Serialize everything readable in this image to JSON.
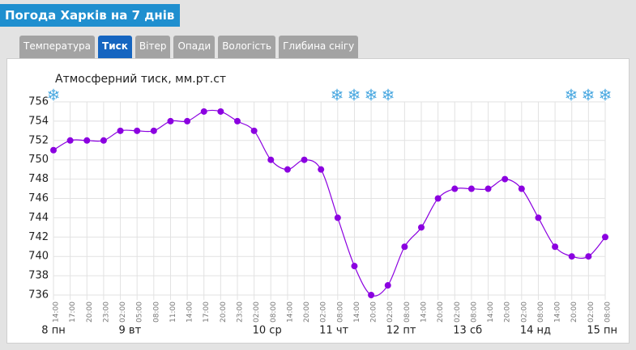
{
  "header": {
    "title": "Погода Харків на 7 днів"
  },
  "tabs": [
    {
      "label": "Температура",
      "active": false
    },
    {
      "label": "Тиск",
      "active": true
    },
    {
      "label": "Вітер",
      "active": false
    },
    {
      "label": "Опади",
      "active": false
    },
    {
      "label": "Вологість",
      "active": false
    },
    {
      "label": "Глибина снігу",
      "active": false
    }
  ],
  "chart_data": {
    "type": "line",
    "title": "Атмосферний тиск, мм.рт.ст",
    "categories": [
      "14:00",
      "17:00",
      "20:00",
      "23:00",
      "02:00",
      "05:00",
      "08:00",
      "11:00",
      "14:00",
      "17:00",
      "20:00",
      "23:00",
      "02:00",
      "08:00",
      "14:00",
      "20:00",
      "02:00",
      "08:00",
      "14:00",
      "20:00",
      "02:00",
      "08:00",
      "14:00",
      "20:00",
      "02:00",
      "08:00",
      "14:00",
      "20:00",
      "02:00",
      "08:00",
      "14:00",
      "20:00",
      "02:00",
      "08:00"
    ],
    "days": [
      "8 пн",
      "9 вт",
      "10 ср",
      "11 чт",
      "12 пт",
      "13 сб",
      "14 нд",
      "15 пн"
    ],
    "values": [
      751,
      752,
      752,
      752,
      753,
      753,
      753,
      754,
      754,
      755,
      755,
      754,
      753,
      750,
      749,
      750,
      749,
      744,
      739,
      736,
      737,
      741,
      743,
      746,
      747,
      747,
      747,
      748,
      747,
      744,
      741,
      740,
      740,
      742
    ],
    "color": "#8b00e0",
    "ylim": [
      736,
      756
    ],
    "yticks": [
      736,
      738,
      740,
      742,
      744,
      746,
      748,
      750,
      752,
      754,
      756
    ],
    "grid": true
  }
}
